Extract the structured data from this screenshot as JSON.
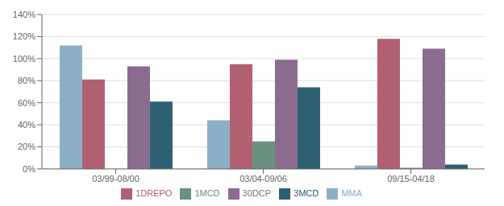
{
  "chart_data": {
    "type": "bar",
    "categories": [
      "03/99-08/00",
      "03/04-09/06",
      "09/15-04/18"
    ],
    "series": [
      {
        "name": "MMA",
        "color": "#8cafc8",
        "values": [
          1.12,
          0.44,
          0.03
        ]
      },
      {
        "name": "1DREPO",
        "color": "#b06070",
        "values": [
          0.81,
          0.95,
          1.18
        ]
      },
      {
        "name": "1MCD",
        "color": "#6a9080",
        "values": [
          null,
          0.25,
          0.01
        ]
      },
      {
        "name": "30DCP",
        "color": "#8b6b8f",
        "values": [
          0.93,
          0.99,
          1.09
        ]
      },
      {
        "name": "3MCD",
        "color": "#2e5f74",
        "values": [
          0.61,
          0.74,
          0.04
        ]
      }
    ],
    "ylim": [
      0,
      1.4
    ],
    "yticks": [
      {
        "value": 0.0,
        "label": "0%"
      },
      {
        "value": 0.2,
        "label": "20%"
      },
      {
        "value": 0.4,
        "label": "40%"
      },
      {
        "value": 0.6,
        "label": "60%"
      },
      {
        "value": 0.8,
        "label": "80%"
      },
      {
        "value": 1.0,
        "label": "100%"
      },
      {
        "value": 1.2,
        "label": "120%"
      },
      {
        "value": 1.4,
        "label": "140%"
      }
    ],
    "grid": true,
    "legend": "bottom"
  }
}
